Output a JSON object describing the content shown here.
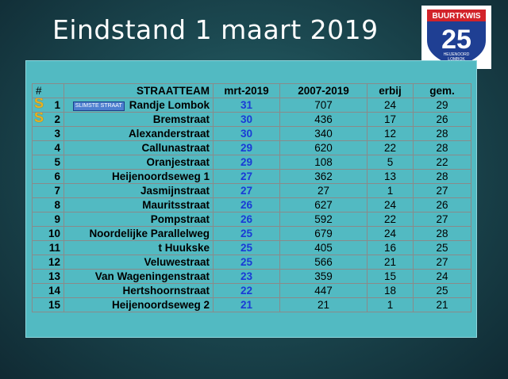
{
  "title": "Eindstand 1 maart 2019",
  "logo": {
    "top_text": "BUURTKWIS",
    "number": "25",
    "bottom_line1": "HEIJENOORD",
    "bottom_line2": "LOMBOK"
  },
  "table": {
    "headers": {
      "num": "#",
      "team": "STRAATTEAM",
      "mrt": "mrt-2019",
      "total": "2007-2019",
      "erbij": "erbij",
      "gem": "gem."
    },
    "symbol": "S",
    "badge": "SLIMSTE STRAAT",
    "rows": [
      {
        "rank": "1",
        "team": "Randje Lombok",
        "mrt": "31",
        "total": "707",
        "erbij": "24",
        "gem": "29"
      },
      {
        "rank": "2",
        "team": "Bremstraat",
        "mrt": "30",
        "total": "436",
        "erbij": "17",
        "gem": "26"
      },
      {
        "rank": "3",
        "team": "Alexanderstraat",
        "mrt": "30",
        "total": "340",
        "erbij": "12",
        "gem": "28"
      },
      {
        "rank": "4",
        "team": "Callunastraat",
        "mrt": "29",
        "total": "620",
        "erbij": "22",
        "gem": "28"
      },
      {
        "rank": "5",
        "team": "Oranjestraat",
        "mrt": "29",
        "total": "108",
        "erbij": "5",
        "gem": "22"
      },
      {
        "rank": "6",
        "team": "Heijenoordseweg 1",
        "mrt": "27",
        "total": "362",
        "erbij": "13",
        "gem": "28"
      },
      {
        "rank": "7",
        "team": "Jasmijnstraat",
        "mrt": "27",
        "total": "27",
        "erbij": "1",
        "gem": "27"
      },
      {
        "rank": "8",
        "team": "Mauritsstraat",
        "mrt": "26",
        "total": "627",
        "erbij": "24",
        "gem": "26"
      },
      {
        "rank": "9",
        "team": "Pompstraat",
        "mrt": "26",
        "total": "592",
        "erbij": "22",
        "gem": "27"
      },
      {
        "rank": "10",
        "team": "Noordelijke Parallelweg",
        "mrt": "25",
        "total": "679",
        "erbij": "24",
        "gem": "28"
      },
      {
        "rank": "11",
        "team": "t Huukske",
        "mrt": "25",
        "total": "405",
        "erbij": "16",
        "gem": "25"
      },
      {
        "rank": "12",
        "team": "Veluwestraat",
        "mrt": "25",
        "total": "566",
        "erbij": "21",
        "gem": "27"
      },
      {
        "rank": "13",
        "team": "Van Wageningenstraat",
        "mrt": "23",
        "total": "359",
        "erbij": "15",
        "gem": "24"
      },
      {
        "rank": "14",
        "team": "Hertshoornstraat",
        "mrt": "22",
        "total": "447",
        "erbij": "18",
        "gem": "25"
      },
      {
        "rank": "15",
        "team": "Heijenoordseweg 2",
        "mrt": "21",
        "total": "21",
        "erbij": "1",
        "gem": "21"
      }
    ]
  }
}
